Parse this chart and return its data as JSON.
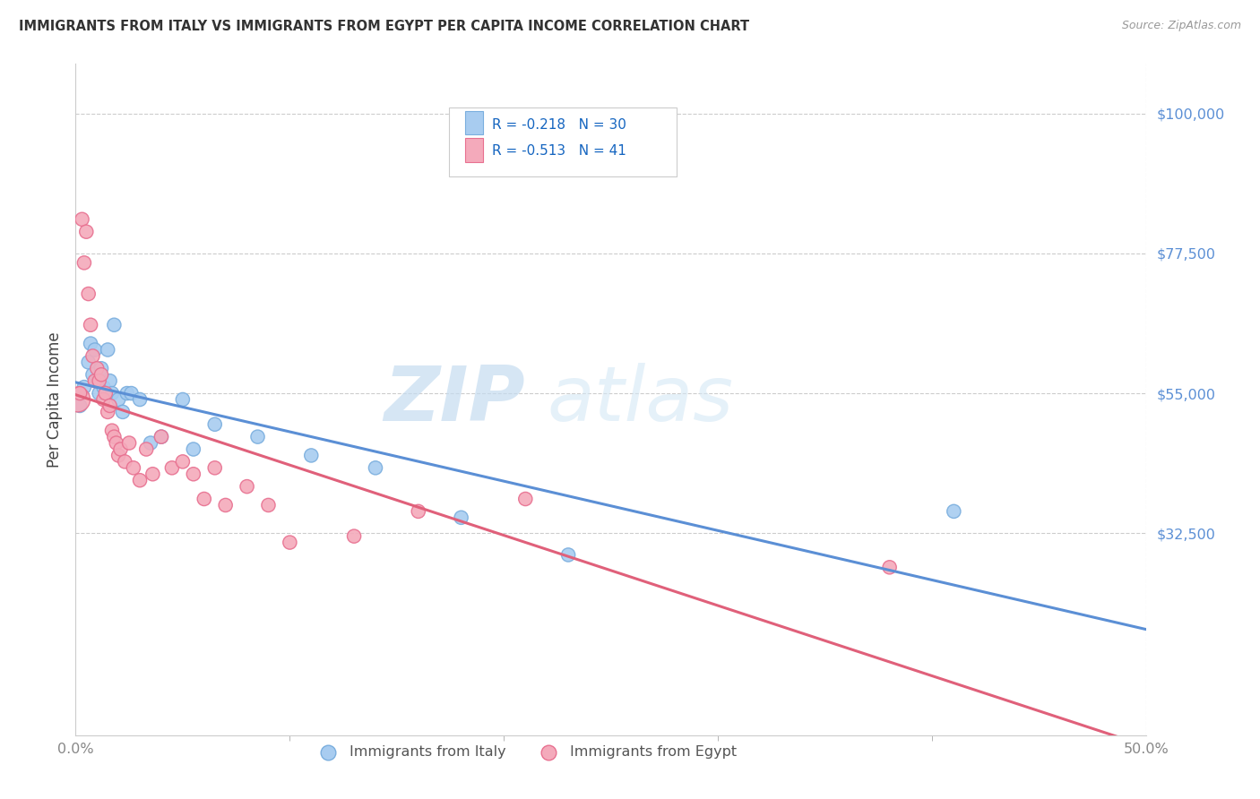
{
  "title": "IMMIGRANTS FROM ITALY VS IMMIGRANTS FROM EGYPT PER CAPITA INCOME CORRELATION CHART",
  "source": "Source: ZipAtlas.com",
  "ylabel": "Per Capita Income",
  "yticks": [
    0,
    32500,
    55000,
    77500,
    100000
  ],
  "xlim": [
    0.0,
    0.5
  ],
  "ylim": [
    0,
    108000
  ],
  "legend_italy": "R = -0.218   N = 30",
  "legend_egypt": "R = -0.513   N = 41",
  "legend_label_italy": "Immigrants from Italy",
  "legend_label_egypt": "Immigrants from Egypt",
  "italy_color": "#A8CCF0",
  "egypt_color": "#F4AABB",
  "italy_edge_color": "#7AAEDE",
  "egypt_edge_color": "#E87090",
  "italy_line_color": "#5B8FD5",
  "egypt_line_color": "#E0607A",
  "watermark_zip": "ZIP",
  "watermark_atlas": "atlas",
  "italy_x": [
    0.002,
    0.004,
    0.006,
    0.007,
    0.008,
    0.009,
    0.01,
    0.011,
    0.012,
    0.013,
    0.015,
    0.016,
    0.017,
    0.018,
    0.02,
    0.022,
    0.024,
    0.026,
    0.03,
    0.035,
    0.04,
    0.05,
    0.055,
    0.065,
    0.085,
    0.11,
    0.14,
    0.18,
    0.23,
    0.41
  ],
  "italy_y": [
    53000,
    56000,
    60000,
    63000,
    58000,
    62000,
    57000,
    55000,
    59000,
    56000,
    62000,
    57000,
    55000,
    66000,
    54000,
    52000,
    55000,
    55000,
    54000,
    47000,
    48000,
    54000,
    46000,
    50000,
    48000,
    45000,
    43000,
    35000,
    29000,
    36000
  ],
  "egypt_x": [
    0.001,
    0.002,
    0.003,
    0.004,
    0.005,
    0.006,
    0.007,
    0.008,
    0.009,
    0.01,
    0.011,
    0.012,
    0.013,
    0.014,
    0.015,
    0.016,
    0.017,
    0.018,
    0.019,
    0.02,
    0.021,
    0.023,
    0.025,
    0.027,
    0.03,
    0.033,
    0.036,
    0.04,
    0.045,
    0.05,
    0.055,
    0.06,
    0.065,
    0.07,
    0.08,
    0.09,
    0.1,
    0.13,
    0.16,
    0.21,
    0.38
  ],
  "egypt_y": [
    54000,
    55000,
    83000,
    76000,
    81000,
    71000,
    66000,
    61000,
    57000,
    59000,
    57000,
    58000,
    54000,
    55000,
    52000,
    53000,
    49000,
    48000,
    47000,
    45000,
    46000,
    44000,
    47000,
    43000,
    41000,
    46000,
    42000,
    48000,
    43000,
    44000,
    42000,
    38000,
    43000,
    37000,
    40000,
    37000,
    31000,
    32000,
    36000,
    38000,
    27000
  ],
  "egypt_size_large_idx": 0,
  "egypt_large_size": 400
}
